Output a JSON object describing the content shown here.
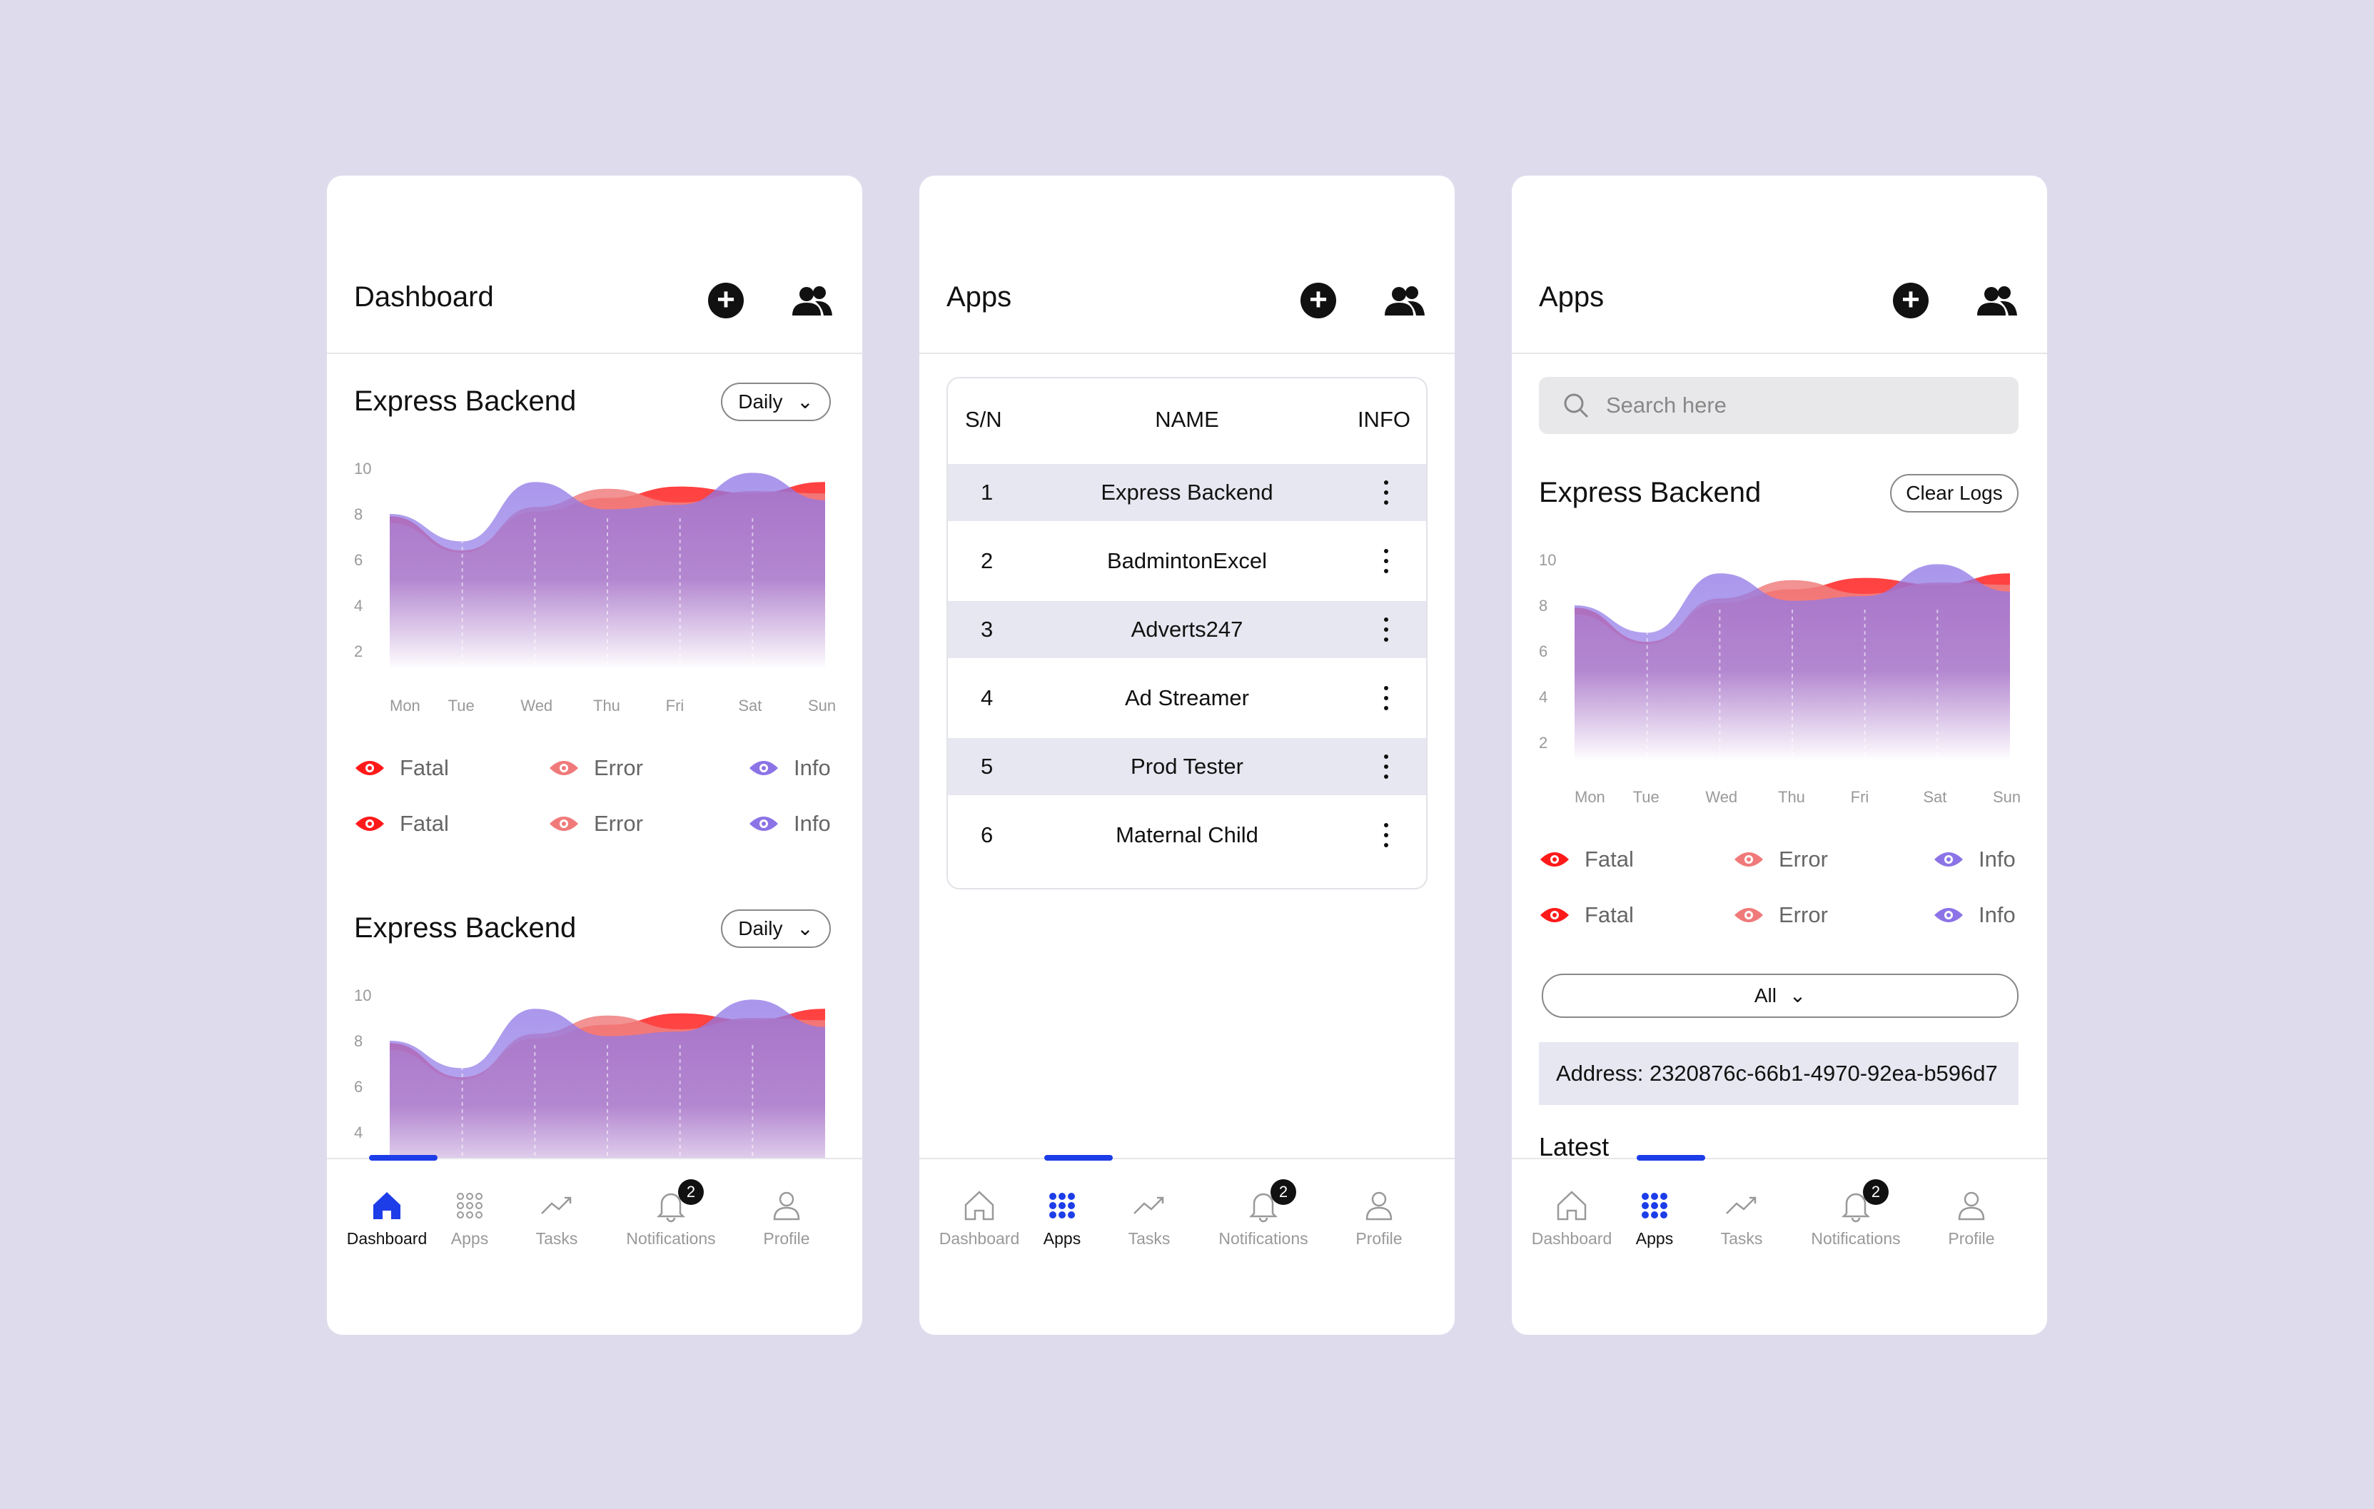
{
  "nav_labels": [
    "Dashboard",
    "Apps",
    "Tasks",
    "Notifications",
    "Profile"
  ],
  "notification_badge": "2",
  "chart_days": [
    "Mon",
    "Tue",
    "Wed",
    "Thu",
    "Fri",
    "Sat",
    "Sun"
  ],
  "chart_y_ticks": [
    "10",
    "8",
    "6",
    "4",
    "2"
  ],
  "legend": {
    "fatal": "Fatal",
    "error": "Error",
    "info": "Info"
  },
  "colors": {
    "accent": "#1d3de8",
    "fatal": "#ff1a1a",
    "error": "#f07a7a",
    "info": "#8c73e6"
  },
  "screen1": {
    "title": "Dashboard",
    "sections": [
      {
        "title": "Express Backend",
        "period": "Daily"
      },
      {
        "title": "Express Backend",
        "period": "Daily"
      }
    ]
  },
  "screen2": {
    "title": "Apps",
    "table": {
      "headers": [
        "S/N",
        "NAME",
        "INFO"
      ],
      "rows": [
        {
          "sn": "1",
          "name": "Express Backend"
        },
        {
          "sn": "2",
          "name": "BadmintonExcel"
        },
        {
          "sn": "3",
          "name": "Adverts247"
        },
        {
          "sn": "4",
          "name": "Ad Streamer"
        },
        {
          "sn": "5",
          "name": "Prod Tester"
        },
        {
          "sn": "6",
          "name": "Maternal Child"
        }
      ]
    }
  },
  "screen3": {
    "title": "Apps",
    "search_placeholder": "Search here",
    "section_title": "Express Backend",
    "clear_logs": "Clear Logs",
    "filter": "All",
    "address": "Address: 2320876c-66b1-4970-92ea-b596d7",
    "latest": "Latest"
  },
  "chart_data": {
    "type": "area",
    "x": [
      "Mon",
      "Tue",
      "Wed",
      "Thu",
      "Fri",
      "Sat",
      "Sun"
    ],
    "ylim": [
      0,
      10
    ],
    "series": [
      {
        "name": "Fatal",
        "values": [
          7.9,
          6.4,
          8.1,
          8.7,
          9.2,
          8.9,
          9.4
        ]
      },
      {
        "name": "Error",
        "values": [
          7.6,
          6.3,
          8.3,
          9.1,
          8.5,
          9.0,
          8.9
        ]
      },
      {
        "name": "Info",
        "values": [
          8.0,
          6.8,
          9.4,
          8.2,
          8.4,
          9.8,
          8.6
        ]
      }
    ]
  }
}
